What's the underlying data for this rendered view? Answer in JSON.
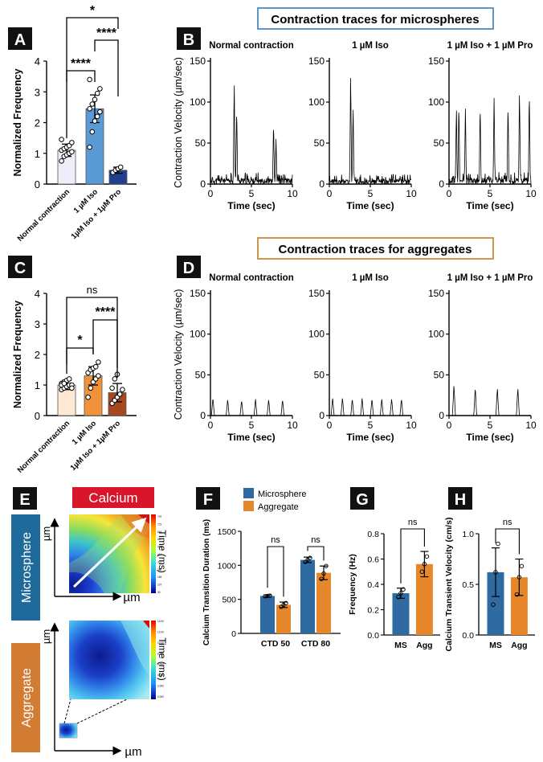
{
  "panels": {
    "A": "A",
    "B": "B",
    "C": "C",
    "D": "D",
    "E": "E",
    "F": "F",
    "G": "G",
    "H": "H"
  },
  "titles": {
    "microspheres": "Contraction traces for microspheres",
    "aggregates": "Contraction traces for aggregates"
  },
  "colors": {
    "ms_blue": "#2f6aa0",
    "agg_orange": "#e6872c",
    "calcium_red": "#d8152a",
    "box_blue_border": "#4a8bc4",
    "box_orange_border": "#c98a3e",
    "micro_label_bg": "#1e6a9a",
    "agg_label_bg": "#d27b33"
  },
  "panel_E": {
    "calcium": "Calcium",
    "microsphere": "Microsphere",
    "aggregate": "Aggregate",
    "um": "µm",
    "time_label": "Time (ms)",
    "colorbar_ticks_top": [
      "797",
      "721",
      "644",
      "567",
      "491",
      "414",
      "337",
      "260",
      "184",
      "107",
      "30"
    ],
    "colorbar_ticks_bottom": [
      "0.000",
      "2.000",
      "4.000",
      "6.000",
      "8.000",
      "10.00",
      "12.00",
      "14.00"
    ]
  },
  "chart_data": [
    {
      "id": "A",
      "type": "bar",
      "ylabel": "Normalized Frequency",
      "ylim": [
        0,
        4
      ],
      "yticks": [
        "0",
        "1",
        "2",
        "3",
        "4"
      ],
      "categories": [
        "Normal contraction",
        "1 µM Iso",
        "1µM Iso + 1µM Pro"
      ],
      "values": [
        1.1,
        2.45,
        0.45
      ],
      "errors": [
        0.2,
        0.45,
        0.1
      ],
      "colors": [
        "#eeeefa",
        "#5b9bd5",
        "#1f3f8f"
      ],
      "points": [
        [
          0.75,
          0.9,
          0.95,
          1.0,
          1.05,
          1.1,
          1.15,
          1.2,
          1.25,
          1.35,
          1.45
        ],
        [
          1.2,
          1.7,
          2.05,
          2.2,
          2.35,
          2.45,
          2.6,
          2.75,
          2.95,
          3.1,
          3.4
        ],
        [
          0.38,
          0.45,
          0.5,
          0.55
        ]
      ],
      "significance": [
        {
          "from": 0,
          "to": 1,
          "label": "****"
        },
        {
          "from": 1,
          "to": 2,
          "label": "****"
        },
        {
          "from": 0,
          "to": 2,
          "label": "*"
        }
      ]
    },
    {
      "id": "C",
      "type": "bar",
      "ylabel": "Normalized Frequency",
      "ylim": [
        0,
        4
      ],
      "yticks": [
        "0",
        "1",
        "2",
        "3",
        "4"
      ],
      "categories": [
        "Normal contraction",
        "1 µM Iso",
        "1µM Iso + 1µM Pro"
      ],
      "values": [
        1.0,
        1.3,
        0.75
      ],
      "errors": [
        0.15,
        0.3,
        0.3
      ],
      "colors": [
        "#fde8d2",
        "#f0923a",
        "#a6481f"
      ],
      "points": [
        [
          0.85,
          0.9,
          0.95,
          1.0,
          1.0,
          1.05,
          1.1,
          1.15,
          1.2,
          0.9,
          1.0,
          1.05
        ],
        [
          0.6,
          0.9,
          1.1,
          1.2,
          1.3,
          1.4,
          1.5,
          1.55,
          1.6,
          1.75
        ],
        [
          0.4,
          0.5,
          0.6,
          0.7,
          0.85,
          0.9,
          1.2,
          1.35
        ]
      ],
      "significance": [
        {
          "from": 0,
          "to": 1,
          "label": "*"
        },
        {
          "from": 1,
          "to": 2,
          "label": "****"
        },
        {
          "from": 0,
          "to": 2,
          "label": "ns"
        }
      ]
    },
    {
      "id": "B",
      "type": "line",
      "ylabel": "Contraction Velocity (µm/sec)",
      "xlabel": "Time (sec)",
      "ylim": [
        0,
        150
      ],
      "yticks": [
        "0",
        "50",
        "100",
        "150"
      ],
      "xlim": [
        0,
        10
      ],
      "xticks": [
        "0",
        "5",
        "10"
      ],
      "subtitles": [
        "Normal contraction",
        "1 µM Iso",
        "1 µM Iso + 1 µM Pro"
      ],
      "series": [
        {
          "name": "Normal contraction",
          "peaks": [
            {
              "t": 2.9,
              "v": 130
            },
            {
              "t": 3.2,
              "v": 97
            },
            {
              "t": 7.7,
              "v": 78
            },
            {
              "t": 8.0,
              "v": 55
            }
          ],
          "noise": 14
        },
        {
          "name": "1 µM Iso",
          "peaks": [
            {
              "t": 2.6,
              "v": 140
            },
            {
              "t": 2.9,
              "v": 98
            }
          ],
          "noise": 12
        },
        {
          "name": "1 µM Iso + 1 µM Pro",
          "peaks": [
            {
              "t": 0.9,
              "v": 97
            },
            {
              "t": 1.2,
              "v": 103
            },
            {
              "t": 2.0,
              "v": 92
            },
            {
              "t": 3.8,
              "v": 101
            },
            {
              "t": 5.5,
              "v": 105
            },
            {
              "t": 7.2,
              "v": 103
            },
            {
              "t": 8.6,
              "v": 117
            },
            {
              "t": 9.8,
              "v": 119
            }
          ],
          "noise": 15
        }
      ]
    },
    {
      "id": "D",
      "type": "line",
      "ylabel": "Contraction Velocity (µm/sec)",
      "xlabel": "Time (sec)",
      "ylim": [
        0,
        150
      ],
      "yticks": [
        "0",
        "50",
        "100",
        "150"
      ],
      "xlim": [
        0,
        10
      ],
      "xticks": [
        "0",
        "5",
        "10"
      ],
      "subtitles": [
        "Normal contraction",
        "1 µM Iso",
        "1 µM Iso + 1 µM Pro"
      ],
      "series": [
        {
          "name": "Normal contraction",
          "peaks": [
            {
              "t": 0.3,
              "v": 22
            },
            {
              "t": 2.1,
              "v": 20
            },
            {
              "t": 3.8,
              "v": 19
            },
            {
              "t": 5.5,
              "v": 20
            },
            {
              "t": 7.1,
              "v": 20
            },
            {
              "t": 8.8,
              "v": 20
            }
          ],
          "noise": 0
        },
        {
          "name": "1 µM Iso",
          "peaks": [
            {
              "t": 0.4,
              "v": 22
            },
            {
              "t": 1.6,
              "v": 22
            },
            {
              "t": 2.8,
              "v": 21
            },
            {
              "t": 4.0,
              "v": 21
            },
            {
              "t": 5.2,
              "v": 21
            },
            {
              "t": 6.4,
              "v": 21
            },
            {
              "t": 7.6,
              "v": 21
            },
            {
              "t": 8.8,
              "v": 21
            }
          ],
          "noise": 0
        },
        {
          "name": "1 µM Iso + 1 µM Pro",
          "peaks": [
            {
              "t": 0.6,
              "v": 38
            },
            {
              "t": 3.2,
              "v": 35
            },
            {
              "t": 5.9,
              "v": 34
            },
            {
              "t": 8.4,
              "v": 34
            }
          ],
          "noise": 0
        }
      ]
    },
    {
      "id": "F",
      "type": "bar",
      "ylabel": "Calcium Transition Duration (ms)",
      "ylim": [
        0,
        1500
      ],
      "yticks": [
        "0",
        "500",
        "1000",
        "1500"
      ],
      "categories": [
        "CTD 50",
        "CTD 80"
      ],
      "legend": [
        "Microsphere",
        "Aggregate"
      ],
      "series": [
        {
          "name": "Microsphere",
          "values": [
            550,
            1080
          ],
          "errors": [
            15,
            40
          ],
          "points": [
            [
              545,
              550,
              555
            ],
            [
              1050,
              1080,
              1110
            ]
          ]
        },
        {
          "name": "Aggregate",
          "values": [
            420,
            890
          ],
          "errors": [
            40,
            100
          ],
          "points": [
            [
              390,
              420,
              445
            ],
            [
              800,
              880,
              990
            ]
          ]
        }
      ],
      "significance": [
        {
          "group": 0,
          "label": "ns"
        },
        {
          "group": 1,
          "label": "ns"
        }
      ]
    },
    {
      "id": "G",
      "type": "bar",
      "ylabel": "Frequency (Hz)",
      "ylim": [
        0,
        0.8
      ],
      "yticks": [
        "0.0",
        "0.2",
        "0.4",
        "0.6",
        "0.8"
      ],
      "categories": [
        "MS",
        "Agg"
      ],
      "values": [
        0.33,
        0.56
      ],
      "errors": [
        0.04,
        0.1
      ],
      "points": [
        [
          0.3,
          0.33,
          0.36
        ],
        [
          0.5,
          0.56,
          0.62
        ]
      ],
      "significance": [
        {
          "from": 0,
          "to": 1,
          "label": "ns"
        }
      ]
    },
    {
      "id": "H",
      "type": "bar",
      "ylabel": "Calcium Transient Velocity (cm/s)",
      "ylim": [
        0,
        1.0
      ],
      "yticks": [
        "0.0",
        "0.5",
        "1.0"
      ],
      "categories": [
        "MS",
        "Agg"
      ],
      "values": [
        0.62,
        0.57
      ],
      "errors": [
        0.24,
        0.18
      ],
      "points": [
        [
          0.3,
          0.62,
          0.9
        ],
        [
          0.4,
          0.57,
          0.68
        ]
      ],
      "significance": [
        {
          "from": 0,
          "to": 1,
          "label": "ns"
        }
      ]
    }
  ]
}
